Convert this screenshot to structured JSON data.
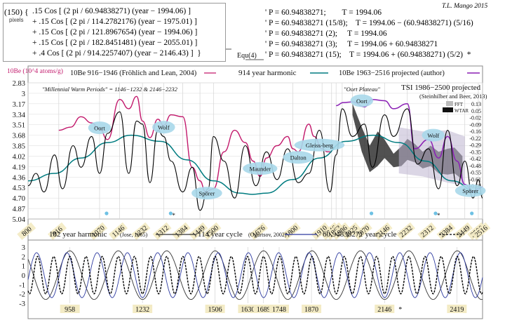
{
  "equation_box": {
    "lead": "(150) {",
    "pixels_label": "pixels",
    "lines": [
      ".15 Cos [ (2 pi / 60.94838271) (year − 1994.06) ]",
      "+ .15 Cos [ (2 pi / 114.2782176) (year − 1975.01) ]",
      "+ .15 Cos [ (2 pi / 121.8967654) (year − 1994.06) ]",
      "+ .15 Cos [ (2 pi / 182.8451481) (year − 2055.01) ]",
      "+ .4 Cos [ (2 pi / 914.2257407) (year − 2146.43) ]  }"
    ],
    "equ_label": "Equ(4)"
  },
  "periods": [
    "' P = 60.94838271;        T = 1994.06",
    "' P = 60.94838271 (15/8);    T = 1994.06 − (60.94838271) (5/16)",
    "' P = 60.94838271 (2);     T = 1994.06",
    "' P = 60.94838271 (3);     T = 1994.06 + 60.94838271",
    "' P = 60.94838271 (15);    T = 1994.06 + (60.94838271) (5/2)  *"
  ],
  "credit": "T.L. Mango 2015",
  "colors": {
    "be10": "#c2186b",
    "harmonic914": "#007c80",
    "projected": "#8a1fb4",
    "h182": "#333333",
    "h114": "#2d3aa0",
    "h61": "#000000",
    "bubble": "#a8d8ea",
    "tick_highlight": "#f3ebc5"
  },
  "chart_data": [
    {
      "type": "line",
      "legend": {
        "be10_axis": "10Be (10^4 atoms/g)",
        "be10": "10Be 916−1946 (Fröhlich and Lean, 2004)",
        "harmonic914": "914 year harmonic",
        "projected": "10Be 1963−2516 projected (author)",
        "tsi": "TSI 1986−2500 projected",
        "tsi_source": "(Steinhilber and Beer, 2013)",
        "fft": "FFT",
        "wtar": "WTAR"
      },
      "annotations": {
        "warm_periods": "\"Millennial Warm Periods\" = 1146−1232  &  2146−2232",
        "oort_plateau": "\"Oort Plateau\""
      },
      "y_left_ticks": [
        "2.83",
        "3",
        "3.17",
        "3.34",
        "3.51",
        "3.68",
        "3.85",
        "4.02",
        "4.19",
        "4.36",
        "4.53",
        "4.70",
        "4.87",
        "5.04"
      ],
      "y_left_range": [
        2.83,
        5.04
      ],
      "y_left_inverted": true,
      "y_right_ticks": [
        "0.13",
        "0.05",
        "-0.02",
        "-0.09",
        "-0.16",
        "-0.22",
        "-0.29",
        "-0.35",
        "-0.42",
        "-0.48",
        "-0.55",
        "-0.61",
        "-0.68"
      ],
      "x_range": [
        800,
        2516
      ],
      "x_ticks": [
        "800",
        "916",
        "1070",
        "1146",
        "1232",
        "1312",
        "1384",
        "1449",
        "1500",
        "1676",
        "1800",
        "1910",
        "1946",
        "1963",
        "1986",
        "2025",
        "2070",
        "2146",
        "2232",
        "2312",
        "2384",
        "2449",
        "2500",
        "2516"
      ],
      "x_ticks_dot": [
        "1070",
        "1312",
        "2070",
        "2312",
        "2449"
      ],
      "x_ticks_star": [
        "1312",
        "2312"
      ],
      "minima": [
        {
          "label": "Oort",
          "x": 1070,
          "y": 3.56
        },
        {
          "label": "Wolf",
          "x": 1312,
          "y": 3.55
        },
        {
          "label": "Spörer",
          "x": 1475,
          "y": 4.62
        },
        {
          "label": "Maunder",
          "x": 1676,
          "y": 4.22
        },
        {
          "label": "Dalton",
          "x": 1820,
          "y": 4.04
        },
        {
          "label": "Gleiss-berg",
          "x": 1900,
          "y": 3.84
        },
        {
          "label": "Oort",
          "x": 2060,
          "y": 3.12
        },
        {
          "label": "Wolf",
          "x": 2330,
          "y": 3.68
        },
        {
          "label": "Spörer",
          "x": 2470,
          "y": 4.58
        }
      ],
      "series": [
        {
          "name": "10Be 916−1946",
          "x": [
            916,
            960,
            1000,
            1040,
            1070,
            1100,
            1146,
            1180,
            1210,
            1232,
            1260,
            1290,
            1312,
            1340,
            1384,
            1420,
            1449,
            1470,
            1500,
            1540,
            1580,
            1620,
            1650,
            1676,
            1700,
            1740,
            1780,
            1800,
            1820,
            1860,
            1880,
            1910,
            1930,
            1946
          ],
          "y": [
            3.6,
            3.55,
            3.38,
            3.48,
            3.58,
            3.75,
            3.1,
            3.25,
            3.05,
            3.45,
            3.72,
            3.42,
            3.52,
            3.35,
            3.38,
            4.2,
            4.42,
            4.6,
            4.55,
            3.95,
            3.6,
            3.8,
            4.1,
            4.35,
            4.05,
            3.85,
            3.7,
            3.9,
            3.95,
            3.5,
            3.7,
            3.9,
            3.95,
            3.95
          ]
        },
        {
          "name": "914 year harmonic",
          "x": [
            800,
            900,
            1000,
            1100,
            1189,
            1300,
            1400,
            1500,
            1600,
            1646,
            1700,
            1800,
            1900,
            2000,
            2103,
            2200,
            2300,
            2400,
            2500,
            2516
          ],
          "y": [
            4.42,
            4.3,
            4.05,
            3.8,
            3.68,
            3.78,
            4.08,
            4.42,
            4.62,
            4.64,
            4.62,
            4.4,
            4.05,
            3.78,
            3.68,
            3.8,
            4.1,
            4.42,
            4.62,
            4.64
          ]
        },
        {
          "name": "10Be 1963−2516 projected",
          "x": [
            1963,
            1990,
            2025,
            2070,
            2100,
            2146,
            2180,
            2232,
            2260,
            2312,
            2350,
            2384,
            2420,
            2449,
            2480,
            2500,
            2516
          ],
          "y": [
            3.2,
            3.15,
            3.14,
            3.22,
            3.1,
            3.12,
            3.25,
            3.17,
            3.9,
            3.75,
            4.05,
            3.7,
            4.1,
            4.48,
            4.6,
            4.55,
            4.52
          ]
        },
        {
          "name": "Equ(4)",
          "x": [
            800,
            830,
            860,
            900,
            930,
            970,
            1000,
            1040,
            1070,
            1100,
            1146,
            1180,
            1210,
            1232,
            1260,
            1290,
            1312,
            1340,
            1384,
            1420,
            1449,
            1480,
            1500,
            1540,
            1580,
            1620,
            1660,
            1700,
            1740,
            1780,
            1820,
            1860,
            1900,
            1940,
            1963,
            1986,
            2025,
            2070,
            2100,
            2146,
            2180,
            2232,
            2270,
            2312,
            2350,
            2384,
            2420,
            2449,
            2480,
            2500,
            2516
          ],
          "y": [
            4.5,
            4.3,
            4.6,
            4.0,
            4.55,
            3.85,
            4.2,
            3.7,
            4.3,
            3.65,
            3.3,
            4.3,
            3.45,
            3.5,
            4.45,
            3.6,
            3.7,
            4.1,
            4.6,
            4.2,
            4.9,
            4.55,
            3.7,
            4.1,
            4.7,
            3.85,
            4.5,
            3.95,
            4.4,
            3.9,
            4.45,
            4.3,
            3.6,
            4.6,
            4.0,
            3.25,
            3.7,
            3.5,
            4.2,
            3.35,
            3.7,
            3.25,
            4.15,
            3.9,
            4.55,
            3.6,
            4.5,
            4.1,
            4.7,
            4.4,
            4.7
          ]
        }
      ]
    },
    {
      "type": "line",
      "legend": {
        "h182": "182 year harmonic",
        "h182_source": "(Jose, 1965)",
        "h114": "114 year cycle",
        "h114_source": "(Ogurtsov, 2002)",
        "h61": "60.94838271 year cycle"
      },
      "y_ticks": [
        "3",
        "2",
        "1",
        "0",
        "-1",
        "-2",
        "-3"
      ],
      "y_range": [
        -3,
        3
      ],
      "x_ticks": [
        "958",
        "1232",
        "1506",
        "1630",
        "1689",
        "1748",
        "1870",
        "2146",
        "2419"
      ],
      "x_tick_star": "2146",
      "series": [
        {
          "name": "182 year harmonic",
          "period": 182.8451481,
          "phase_year": 2055.01,
          "amplitude": 2.6
        },
        {
          "name": "114 year cycle",
          "period": 114.2782176,
          "phase_year": 1975.01,
          "amplitude": 2.4
        },
        {
          "name": "60.94838271 year cycle",
          "period": 60.94838271,
          "phase_year": 1994.06,
          "amplitude": 2.0
        }
      ]
    }
  ]
}
